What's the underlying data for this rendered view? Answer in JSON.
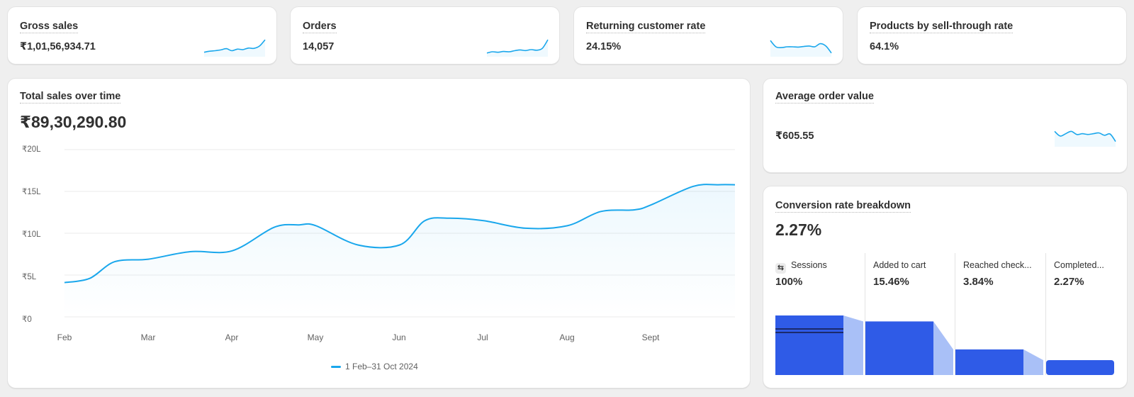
{
  "colors": {
    "line": "#1aa7ec",
    "funnel_bar": "#2f5be7",
    "funnel_connector": "#a9c0f7",
    "background": "#efefef",
    "card": "#ffffff"
  },
  "metrics": [
    {
      "title": "Gross sales",
      "value": "₹1,01,56,934.71",
      "sparkline": [
        0.15,
        0.22,
        0.25,
        0.3,
        0.38,
        0.25,
        0.35,
        0.32,
        0.42,
        0.4,
        0.55,
        0.95
      ]
    },
    {
      "title": "Orders",
      "value": "14,057",
      "sparkline": [
        0.1,
        0.18,
        0.15,
        0.2,
        0.18,
        0.25,
        0.3,
        0.26,
        0.32,
        0.28,
        0.4,
        0.95
      ]
    },
    {
      "title": "Returning customer rate",
      "value": "24.15%",
      "sparkline": [
        0.9,
        0.5,
        0.45,
        0.5,
        0.5,
        0.48,
        0.52,
        0.55,
        0.5,
        0.7,
        0.55,
        0.1
      ]
    },
    {
      "title": "Products by sell-through rate",
      "value": "64.1%"
    }
  ],
  "total_sales": {
    "title": "Total sales over time",
    "value": "₹89,30,290.80",
    "legend": "1 Feb–31 Oct 2024"
  },
  "chart_data": {
    "type": "line",
    "title": "Total sales over time",
    "x_tick_labels": [
      "Feb",
      "Mar",
      "Apr",
      "May",
      "Jun",
      "Jul",
      "Aug",
      "Sept"
    ],
    "y_tick_labels": [
      "₹0",
      "₹5L",
      "₹10L",
      "₹15L",
      "₹20L"
    ],
    "ylim": [
      0,
      20
    ],
    "y_unit": "lakh ₹",
    "x": [
      0,
      0.3,
      0.6,
      1,
      1.5,
      2,
      2.5,
      2.8,
      3,
      3.5,
      4,
      4.3,
      4.6,
      5,
      5.5,
      6,
      6.4,
      6.8,
      7,
      7.5,
      7.8,
      8
    ],
    "values": [
      4.1,
      4.6,
      6.6,
      6.9,
      7.8,
      7.9,
      10.7,
      11.0,
      10.9,
      8.6,
      8.6,
      11.5,
      11.8,
      11.5,
      10.6,
      10.9,
      12.6,
      12.8,
      13.4,
      15.6,
      15.8,
      15.8
    ],
    "series": [
      {
        "name": "1 Feb–31 Oct 2024"
      }
    ],
    "grid": true,
    "legend_position": "bottom-center"
  },
  "aov": {
    "title": "Average order value",
    "value": "₹605.55",
    "sparkline": [
      0.85,
      0.55,
      0.7,
      0.85,
      0.65,
      0.7,
      0.65,
      0.7,
      0.75,
      0.6,
      0.68,
      0.2
    ]
  },
  "conversion": {
    "title": "Conversion rate breakdown",
    "value": "2.27%",
    "stages": [
      {
        "label": "Sessions",
        "value": "100%",
        "icon": "sessions-icon",
        "fraction": 1.0
      },
      {
        "label": "Added to cart",
        "value": "15.46%",
        "fraction": 0.9
      },
      {
        "label": "Reached check...",
        "value": "3.84%",
        "fraction": 0.43
      },
      {
        "label": "Completed...",
        "value": "2.27%",
        "fraction": 0.25
      }
    ]
  }
}
